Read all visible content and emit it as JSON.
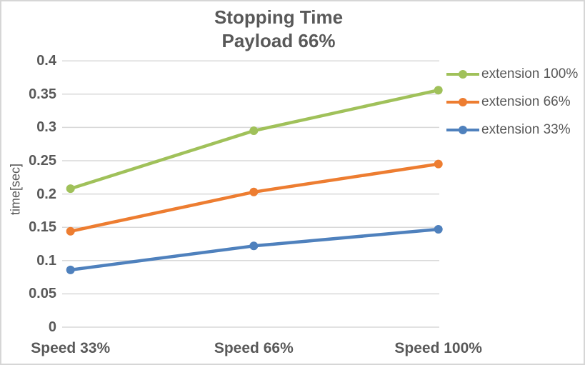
{
  "colors": {
    "text": "#595959",
    "grid": "#D9D9D9",
    "border": "#D6D6D6",
    "background": "#FFFFFF"
  },
  "chart_data": {
    "type": "line",
    "title": "Stopping Time",
    "subtitle": "Payload 66%",
    "xlabel": "",
    "ylabel": "time[sec]",
    "categories": [
      "Speed 33%",
      "Speed 66%",
      "Speed 100%"
    ],
    "series": [
      {
        "name": "extension 100%",
        "color": "#A0C15A",
        "values": [
          0.208,
          0.295,
          0.356
        ]
      },
      {
        "name": "extension 66%",
        "color": "#ED7D31",
        "values": [
          0.144,
          0.203,
          0.245
        ]
      },
      {
        "name": "extension 33%",
        "color": "#4F81BD",
        "values": [
          0.086,
          0.122,
          0.147
        ]
      }
    ],
    "ylim": [
      0,
      0.4
    ],
    "ytick_step": 0.05,
    "ytick_labels": [
      "0",
      "0.05",
      "0.1",
      "0.15",
      "0.2",
      "0.25",
      "0.3",
      "0.35",
      "0.4"
    ],
    "grid": true,
    "markers": true,
    "legend_position": "right"
  }
}
